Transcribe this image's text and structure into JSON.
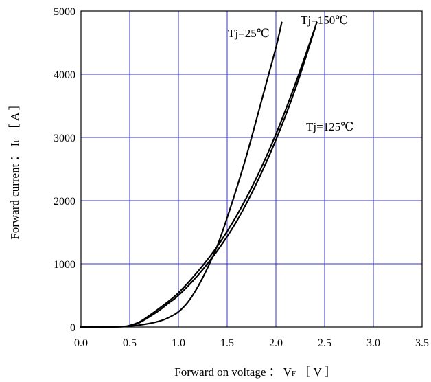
{
  "chart_data": {
    "type": "line",
    "title": "",
    "xlabel": "Forward on voltage ： V F ［ V ］",
    "xlabel_parts": {
      "main": "Forward on voltage ：  V",
      "sub": "F",
      "unit": " ［ V ］"
    },
    "ylabel": "Forward current ： I F ［ A ］",
    "ylabel_parts": {
      "main": "Forward current ：  I",
      "sub": "F",
      "unit": " ［ A ］"
    },
    "xlim": [
      0.0,
      3.5
    ],
    "ylim": [
      0,
      5000
    ],
    "xticks": [
      "0.0",
      "0.5",
      "1.0",
      "1.5",
      "2.0",
      "2.5",
      "3.0",
      "3.5"
    ],
    "yticks": [
      "0",
      "1000",
      "2000",
      "3000",
      "4000",
      "5000"
    ],
    "grid": true,
    "grid_color": "#3333cc",
    "line_color": "#000000",
    "series": [
      {
        "name": "Tj=25℃",
        "x": [
          0.0,
          0.4,
          0.6,
          0.8,
          0.9,
          1.0,
          1.1,
          1.2,
          1.3,
          1.4,
          1.5,
          1.6,
          1.7,
          1.8,
          1.9,
          2.0,
          2.06
        ],
        "y": [
          0,
          5,
          30,
          90,
          150,
          240,
          400,
          640,
          940,
          1290,
          1730,
          2210,
          2720,
          3280,
          3850,
          4420,
          4820
        ]
      },
      {
        "name": "Tj=125℃",
        "x": [
          0.0,
          0.4,
          0.5,
          0.6,
          0.7,
          0.8,
          0.9,
          1.0,
          1.2,
          1.4,
          1.6,
          1.8,
          2.0,
          2.2,
          2.4
        ],
        "y": [
          0,
          5,
          20,
          70,
          160,
          260,
          380,
          500,
          820,
          1210,
          1680,
          2270,
          2960,
          3770,
          4720
        ]
      },
      {
        "name": "Tj=150℃",
        "x": [
          0.0,
          0.4,
          0.5,
          0.6,
          0.7,
          0.8,
          0.9,
          1.0,
          1.2,
          1.4,
          1.6,
          1.8,
          2.0,
          2.2,
          2.42
        ],
        "y": [
          0,
          5,
          25,
          80,
          180,
          290,
          410,
          540,
          880,
          1280,
          1770,
          2360,
          3050,
          3850,
          4820
        ]
      }
    ],
    "annotations": [
      "Tj=25℃",
      "Tj=150℃",
      "Tj=125℃"
    ]
  }
}
